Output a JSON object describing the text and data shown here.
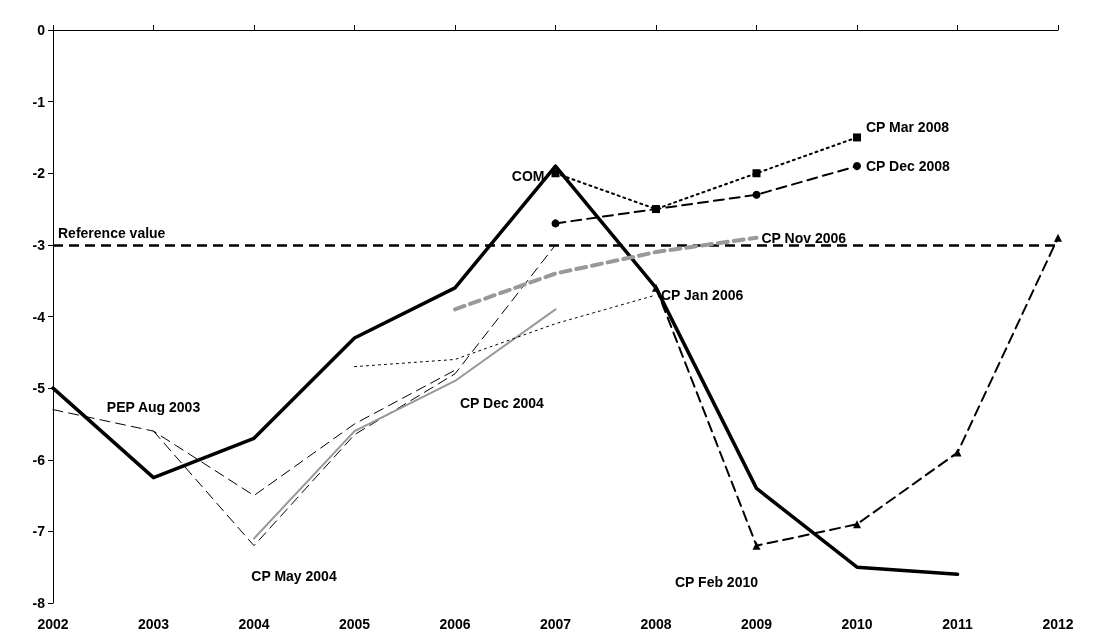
{
  "chart_data": {
    "type": "line",
    "x": [
      2002,
      2003,
      2004,
      2005,
      2006,
      2007,
      2008,
      2009,
      2010,
      2011
    ],
    "series": [
      {
        "name": "COM",
        "color": "#000000",
        "line_style": "solid",
        "marker": "none",
        "values": [
          -5.0,
          -6.25,
          -5.7,
          -4.3,
          -3.6,
          -1.9,
          -3.6,
          -6.4,
          -7.5,
          -7.6
        ]
      },
      {
        "name": "PEP Aug 2003",
        "color": "#000000",
        "line_style": "dashed",
        "marker": "none",
        "x": [
          2002,
          2003,
          2004,
          2005,
          2006
        ],
        "values": [
          -5.3,
          -5.6,
          -6.5,
          -5.5,
          -4.75
        ]
      },
      {
        "name": "CP May 2004",
        "color": "#000000",
        "line_style": "dashed",
        "marker": "none",
        "x": [
          2003,
          2004,
          2005,
          2006,
          2007
        ],
        "values": [
          -5.6,
          -7.2,
          -5.65,
          -4.8,
          -3.0
        ]
      },
      {
        "name": "CP Dec 2004",
        "color": "#999999",
        "line_style": "solid",
        "marker": "none",
        "x": [
          2004,
          2005,
          2006,
          2007
        ],
        "values": [
          -7.1,
          -5.6,
          -4.9,
          -3.9
        ]
      },
      {
        "name": "CP Jan 2006",
        "color": "#000000",
        "line_style": "dotted",
        "marker": "none",
        "x": [
          2005,
          2006,
          2007,
          2008
        ],
        "values": [
          -4.7,
          -4.6,
          -4.1,
          -3.7
        ]
      },
      {
        "name": "CP Nov 2006",
        "color": "#999999",
        "line_style": "dashed",
        "marker": "none",
        "x": [
          2006,
          2007,
          2008,
          2009
        ],
        "values": [
          -3.9,
          -3.4,
          -3.1,
          -2.9
        ]
      },
      {
        "name": "CP Mar 2008",
        "color": "#000000",
        "line_style": "dotted",
        "marker": "square",
        "x": [
          2007,
          2008,
          2009,
          2010
        ],
        "values": [
          -2.0,
          -2.5,
          -2.0,
          -1.5
        ]
      },
      {
        "name": "CP Dec 2008",
        "color": "#000000",
        "line_style": "dashed",
        "marker": "circle",
        "x": [
          2007,
          2008,
          2009,
          2010
        ],
        "values": [
          -2.7,
          -2.5,
          -2.3,
          -1.9
        ]
      },
      {
        "name": "CP Feb 2010",
        "color": "#000000",
        "line_style": "dashed",
        "marker": "triangle",
        "x": [
          2008,
          2009,
          2010,
          2011,
          2012
        ],
        "values": [
          -3.6,
          -7.2,
          -6.9,
          -5.9,
          -2.9
        ]
      }
    ],
    "ref_lines": [
      {
        "axis": "y",
        "value": -3,
        "label": "Reference value",
        "color": "#000000",
        "line_style": "dashed"
      }
    ],
    "xlim": [
      2002,
      2012
    ],
    "xticks": [
      2002,
      2003,
      2004,
      2005,
      2006,
      2007,
      2008,
      2009,
      2010,
      2011,
      2012
    ],
    "ylim": [
      -8,
      0
    ],
    "yticks": [
      -8,
      -7,
      -6,
      -5,
      -4,
      -3,
      -2,
      -1,
      0
    ],
    "grid": false,
    "legend": false
  }
}
